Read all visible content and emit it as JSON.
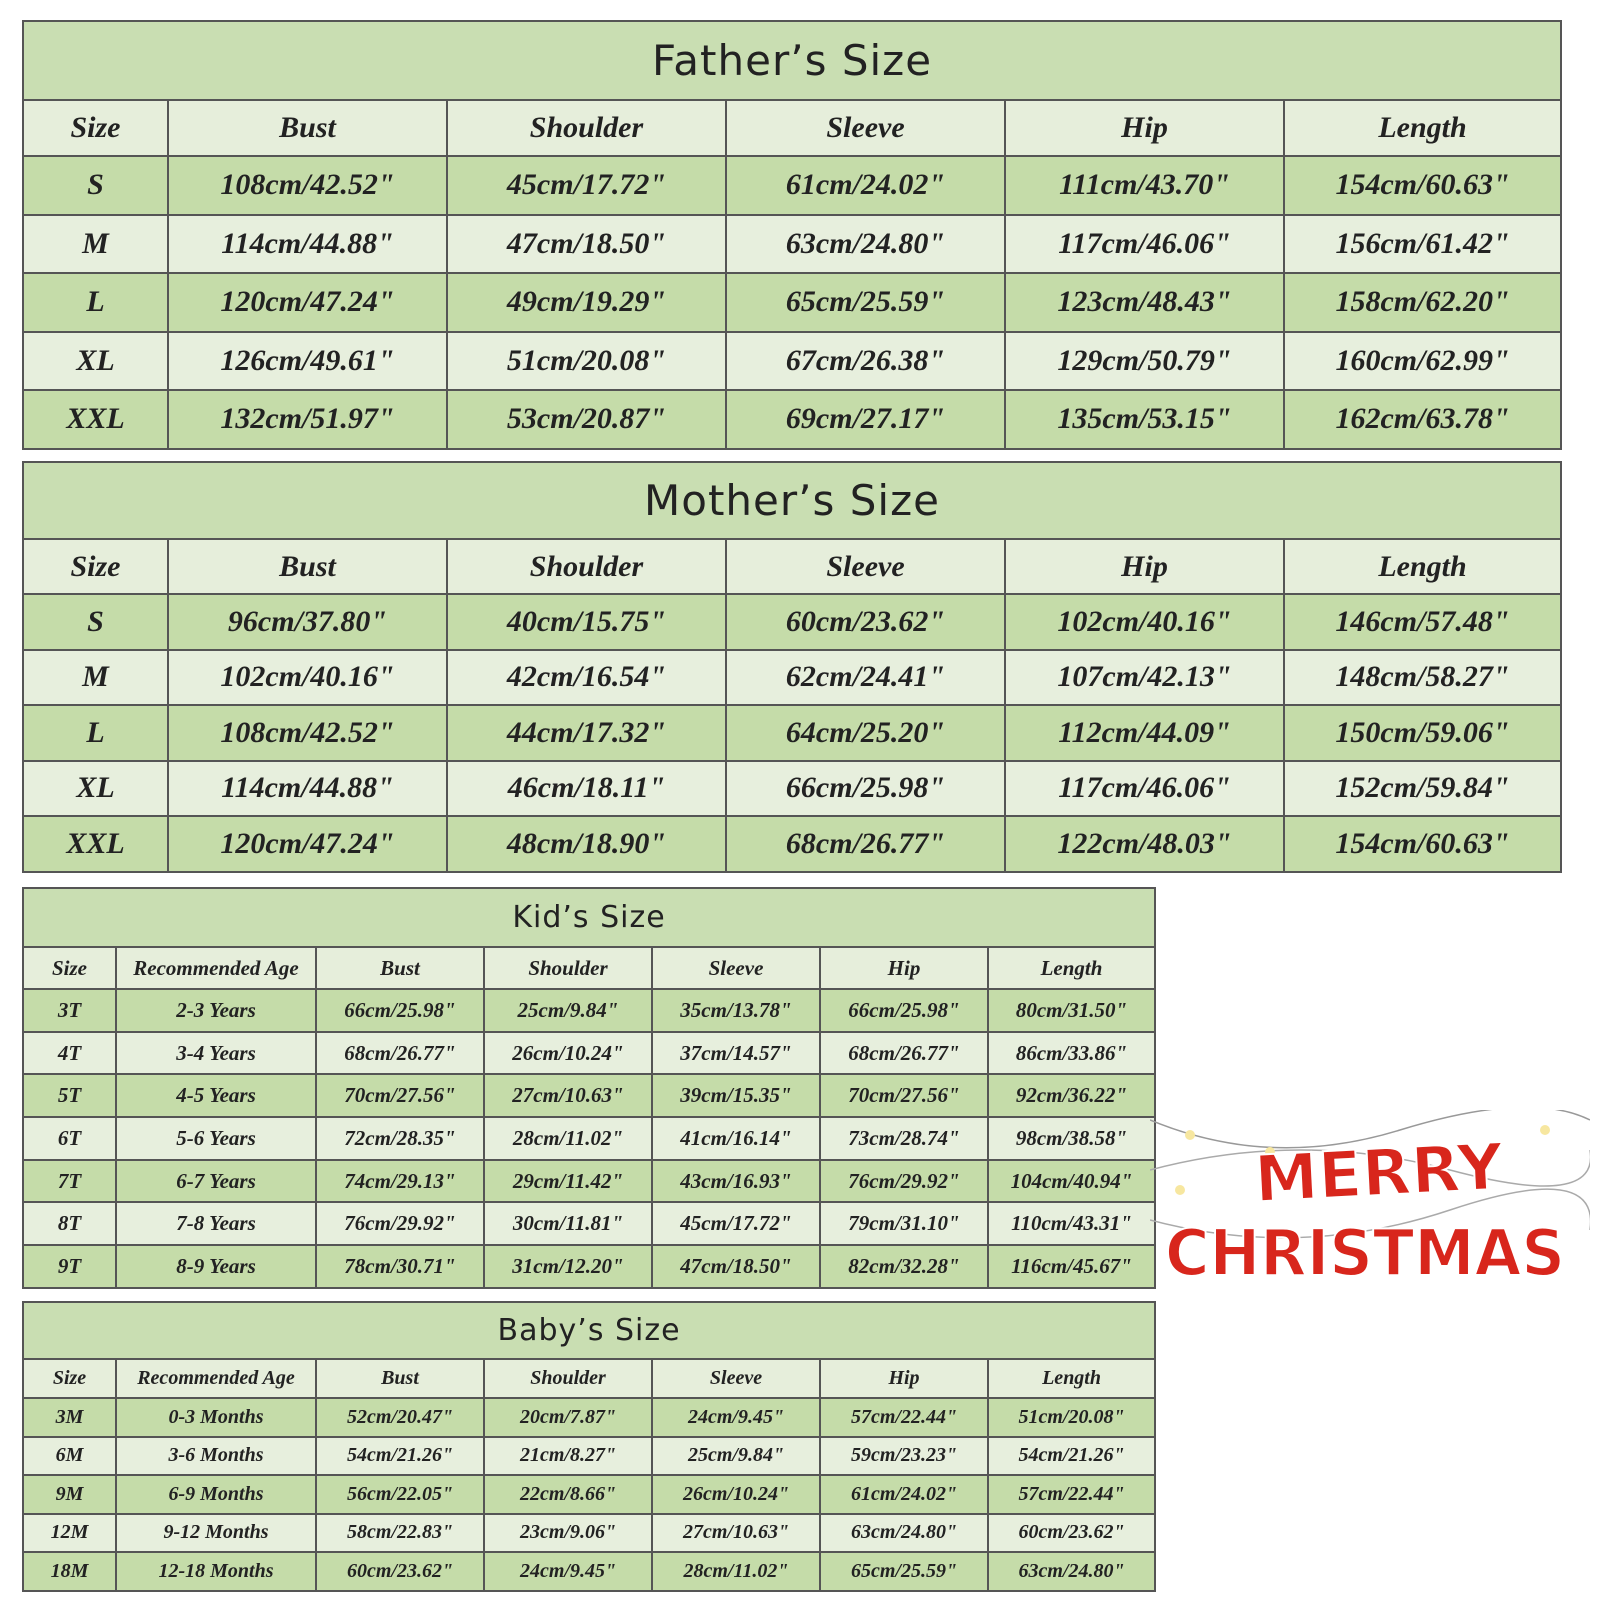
{
  "fathers_size": {
    "title": "Father’s Size",
    "columns": [
      "Size",
      "Bust",
      "Shoulder",
      "Sleeve",
      "Hip",
      "Length"
    ],
    "rows": [
      [
        "S",
        "108cm/42.52\"",
        "45cm/17.72\"",
        "61cm/24.02\"",
        "111cm/43.70\"",
        "154cm/60.63\""
      ],
      [
        "M",
        "114cm/44.88\"",
        "47cm/18.50\"",
        "63cm/24.80\"",
        "117cm/46.06\"",
        "156cm/61.42\""
      ],
      [
        "L",
        "120cm/47.24\"",
        "49cm/19.29\"",
        "65cm/25.59\"",
        "123cm/48.43\"",
        "158cm/62.20\""
      ],
      [
        "XL",
        "126cm/49.61\"",
        "51cm/20.08\"",
        "67cm/26.38\"",
        "129cm/50.79\"",
        "160cm/62.99\""
      ],
      [
        "XXL",
        "132cm/51.97\"",
        "53cm/20.87\"",
        "69cm/27.17\"",
        "135cm/53.15\"",
        "162cm/63.78\""
      ]
    ]
  },
  "mothers_size": {
    "title": "Mother’s Size",
    "columns": [
      "Size",
      "Bust",
      "Shoulder",
      "Sleeve",
      "Hip",
      "Length"
    ],
    "rows": [
      [
        "S",
        "96cm/37.80\"",
        "40cm/15.75\"",
        "60cm/23.62\"",
        "102cm/40.16\"",
        "146cm/57.48\""
      ],
      [
        "M",
        "102cm/40.16\"",
        "42cm/16.54\"",
        "62cm/24.41\"",
        "107cm/42.13\"",
        "148cm/58.27\""
      ],
      [
        "L",
        "108cm/42.52\"",
        "44cm/17.32\"",
        "64cm/25.20\"",
        "112cm/44.09\"",
        "150cm/59.06\""
      ],
      [
        "XL",
        "114cm/44.88\"",
        "46cm/18.11\"",
        "66cm/25.98\"",
        "117cm/46.06\"",
        "152cm/59.84\""
      ],
      [
        "XXL",
        "120cm/47.24\"",
        "48cm/18.90\"",
        "68cm/26.77\"",
        "122cm/48.03\"",
        "154cm/60.63\""
      ]
    ]
  },
  "kids_size": {
    "title": "Kid’s Size",
    "columns": [
      "Size",
      "Recommended Age",
      "Bust",
      "Shoulder",
      "Sleeve",
      "Hip",
      "Length"
    ],
    "rows": [
      [
        "3T",
        "2-3 Years",
        "66cm/25.98\"",
        "25cm/9.84\"",
        "35cm/13.78\"",
        "66cm/25.98\"",
        "80cm/31.50\""
      ],
      [
        "4T",
        "3-4 Years",
        "68cm/26.77\"",
        "26cm/10.24\"",
        "37cm/14.57\"",
        "68cm/26.77\"",
        "86cm/33.86\""
      ],
      [
        "5T",
        "4-5 Years",
        "70cm/27.56\"",
        "27cm/10.63\"",
        "39cm/15.35\"",
        "70cm/27.56\"",
        "92cm/36.22\""
      ],
      [
        "6T",
        "5-6 Years",
        "72cm/28.35\"",
        "28cm/11.02\"",
        "41cm/16.14\"",
        "73cm/28.74\"",
        "98cm/38.58\""
      ],
      [
        "7T",
        "6-7 Years",
        "74cm/29.13\"",
        "29cm/11.42\"",
        "43cm/16.93\"",
        "76cm/29.92\"",
        "104cm/40.94\""
      ],
      [
        "8T",
        "7-8 Years",
        "76cm/29.92\"",
        "30cm/11.81\"",
        "45cm/17.72\"",
        "79cm/31.10\"",
        "110cm/43.31\""
      ],
      [
        "9T",
        "8-9 Years",
        "78cm/30.71\"",
        "31cm/12.20\"",
        "47cm/18.50\"",
        "82cm/32.28\"",
        "116cm/45.67\""
      ]
    ]
  },
  "babys_size": {
    "title": "Baby’s Size",
    "columns": [
      "Size",
      "Recommended Age",
      "Bust",
      "Shoulder",
      "Sleeve",
      "Hip",
      "Length"
    ],
    "rows": [
      [
        "3M",
        "0-3 Months",
        "52cm/20.47\"",
        "20cm/7.87\"",
        "24cm/9.45\"",
        "57cm/22.44\"",
        "51cm/20.08\""
      ],
      [
        "6M",
        "3-6 Months",
        "54cm/21.26\"",
        "21cm/8.27\"",
        "25cm/9.84\"",
        "59cm/23.23\"",
        "54cm/21.26\""
      ],
      [
        "9M",
        "6-9 Months",
        "56cm/22.05\"",
        "22cm/8.66\"",
        "26cm/10.24\"",
        "61cm/24.02\"",
        "57cm/22.44\""
      ],
      [
        "12M",
        "9-12 Months",
        "58cm/22.83\"",
        "23cm/9.06\"",
        "27cm/10.63\"",
        "63cm/24.80\"",
        "60cm/23.62\""
      ],
      [
        "18M",
        "12-18 Months",
        "60cm/23.62\"",
        "24cm/9.45\"",
        "28cm/11.02\"",
        "65cm/25.59\"",
        "63cm/24.80\""
      ]
    ]
  },
  "decoration": {
    "lines": [
      "MERRY",
      "CHRISTMAS"
    ]
  }
}
